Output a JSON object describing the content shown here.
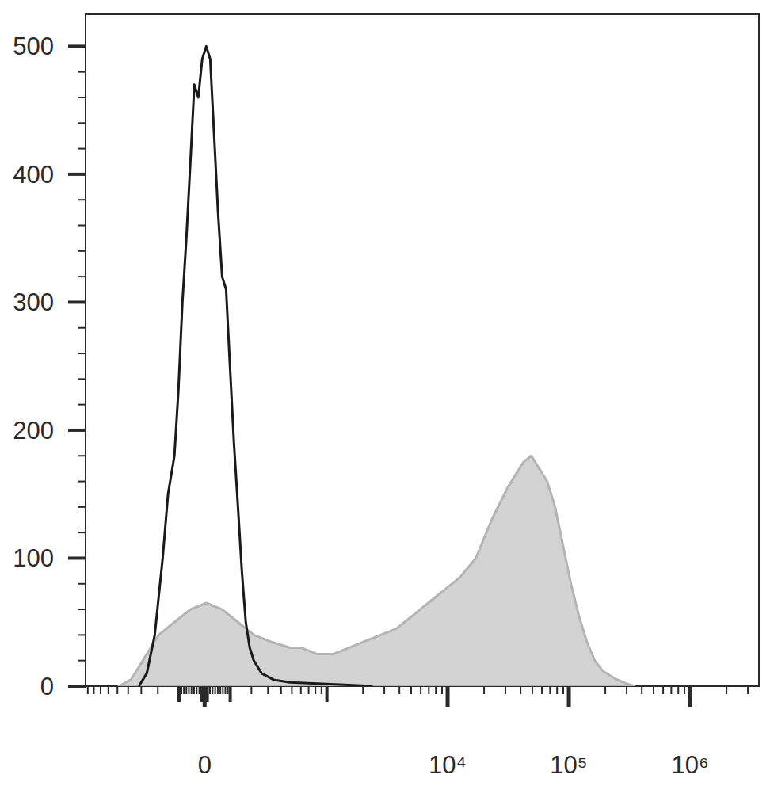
{
  "chart_data": {
    "type": "line",
    "log": "x",
    "xlim": [
      -940,
      3700000
    ],
    "ylim": [
      0,
      525
    ],
    "xticks": [
      0,
      {
        "value": 10000,
        "label": "10⁴"
      },
      {
        "value": 100000,
        "label": "10⁵"
      },
      {
        "value": 1000000,
        "label": "10⁶"
      }
    ],
    "yticks": [
      0,
      100,
      200,
      300,
      400,
      500
    ],
    "series": [
      {
        "type": "area",
        "color": "#d3d3d3",
        "x": [
          -485,
          -378,
          -290,
          -196,
          -120,
          -54,
          6,
          67,
          134,
          213,
          312,
          481,
          606,
          830,
          1127,
          1528,
          2069,
          2798,
          3782,
          5128,
          6910,
          9346,
          12632,
          17087,
          23087,
          31205,
          42174,
          49005,
          56965,
          66231,
          77022,
          89496,
          104049,
          120978,
          140580,
          163548,
          190080,
          238392,
          298782,
          347292
        ],
        "values": [
          0,
          5,
          20,
          40,
          50,
          60,
          65,
          60,
          50,
          40,
          35,
          30,
          30,
          25,
          25,
          30,
          35,
          40,
          45,
          55,
          65,
          75,
          85,
          100,
          130,
          155,
          175,
          180,
          170,
          160,
          140,
          110,
          80,
          55,
          35,
          20,
          12,
          6,
          2,
          0
        ]
      },
      {
        "type": "line",
        "color": "#1a1a1a",
        "x": [
          -317,
          -264,
          -217,
          -175,
          -149,
          -120,
          -103,
          -86,
          -70,
          -54,
          -39,
          -24,
          -9,
          6,
          21,
          36,
          51,
          67,
          83,
          99,
          116,
          134,
          152,
          171,
          191,
          213,
          259,
          340,
          481,
          830,
          1528,
          2408
        ],
        "values": [
          0,
          10,
          40,
          100,
          150,
          180,
          230,
          300,
          350,
          410,
          470,
          460,
          490,
          500,
          490,
          430,
          370,
          320,
          310,
          250,
          190,
          140,
          90,
          50,
          30,
          20,
          10,
          5,
          3,
          2,
          1,
          0
        ]
      }
    ]
  }
}
